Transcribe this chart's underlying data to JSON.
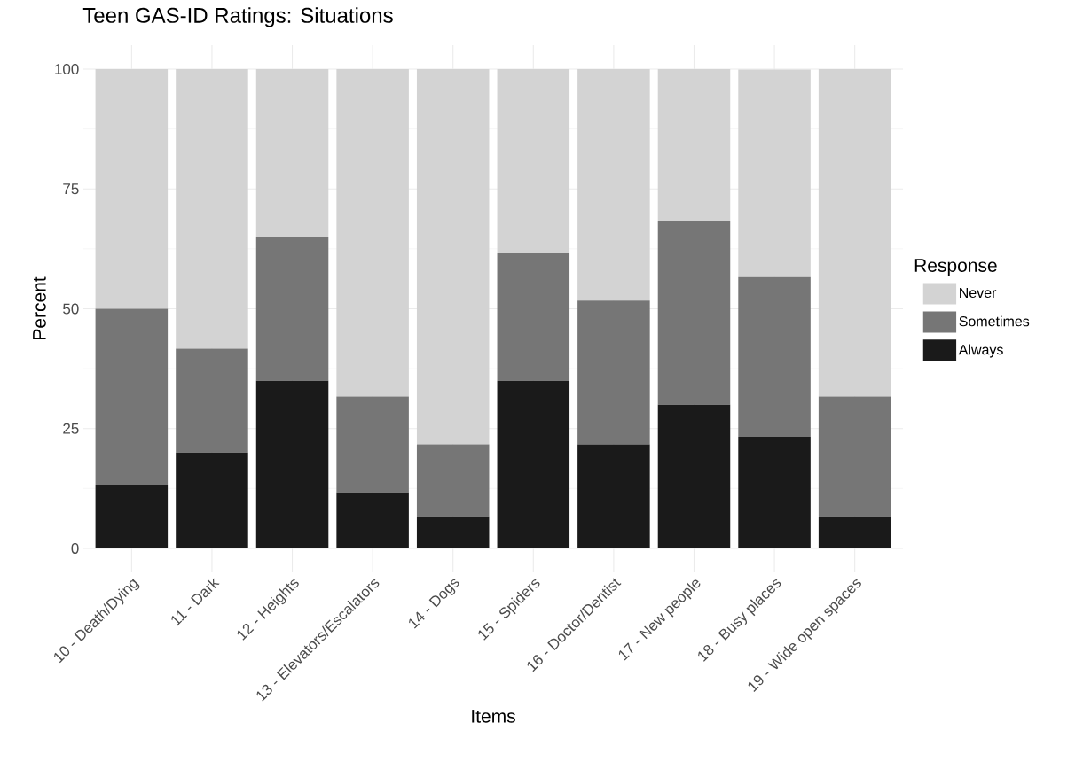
{
  "chart_data": {
    "type": "bar",
    "title": "Teen GAS-ID Ratings: Situations",
    "xlabel": "Items",
    "ylabel": "Percent",
    "legend_title": "Response",
    "categories": [
      "10 - Death/Dying",
      "11 - Dark",
      "12 - Heights",
      "13 - Elevators/Escalators",
      "14 - Dogs",
      "15 - Spiders",
      "16 - Doctor/Dentist",
      "17 - New people",
      "18 - Busy places",
      "19 - Wide open spaces"
    ],
    "stacked": true,
    "series": [
      {
        "name": "Always",
        "color": "#1a1a1a",
        "values": [
          13.3,
          20,
          35,
          11.7,
          6.7,
          35,
          21.7,
          30,
          23.3,
          6.7
        ]
      },
      {
        "name": "Sometimes",
        "color": "#767676",
        "values": [
          36.7,
          21.7,
          30,
          20,
          15,
          26.7,
          30,
          38.3,
          33.3,
          25
        ]
      },
      {
        "name": "Never",
        "color": "#d3d3d3",
        "values": [
          50,
          58.3,
          35,
          68.3,
          78.3,
          38.3,
          48.3,
          31.7,
          43.3,
          68.3
        ]
      }
    ],
    "ylim": [
      0,
      100
    ],
    "yticks": [
      0,
      25,
      50,
      75,
      100
    ],
    "grid": true,
    "legend": "right"
  }
}
